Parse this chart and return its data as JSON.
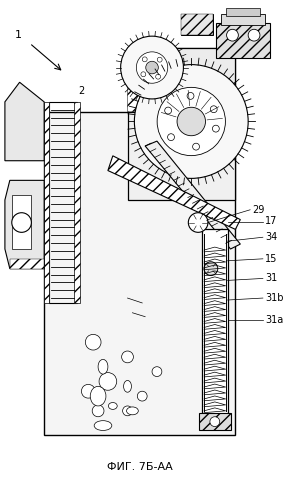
{
  "title": "ФИГ. 7Б-АА",
  "label_1": "1",
  "label_2": "2",
  "label_17": "17",
  "label_29": "29",
  "label_34": "34",
  "label_15": "15",
  "label_31": "31",
  "label_31b": "31b",
  "label_31a": "31a",
  "bg_color": "#ffffff",
  "line_color": "#000000",
  "figsize": [
    2.86,
    4.99
  ],
  "dpi": 100
}
